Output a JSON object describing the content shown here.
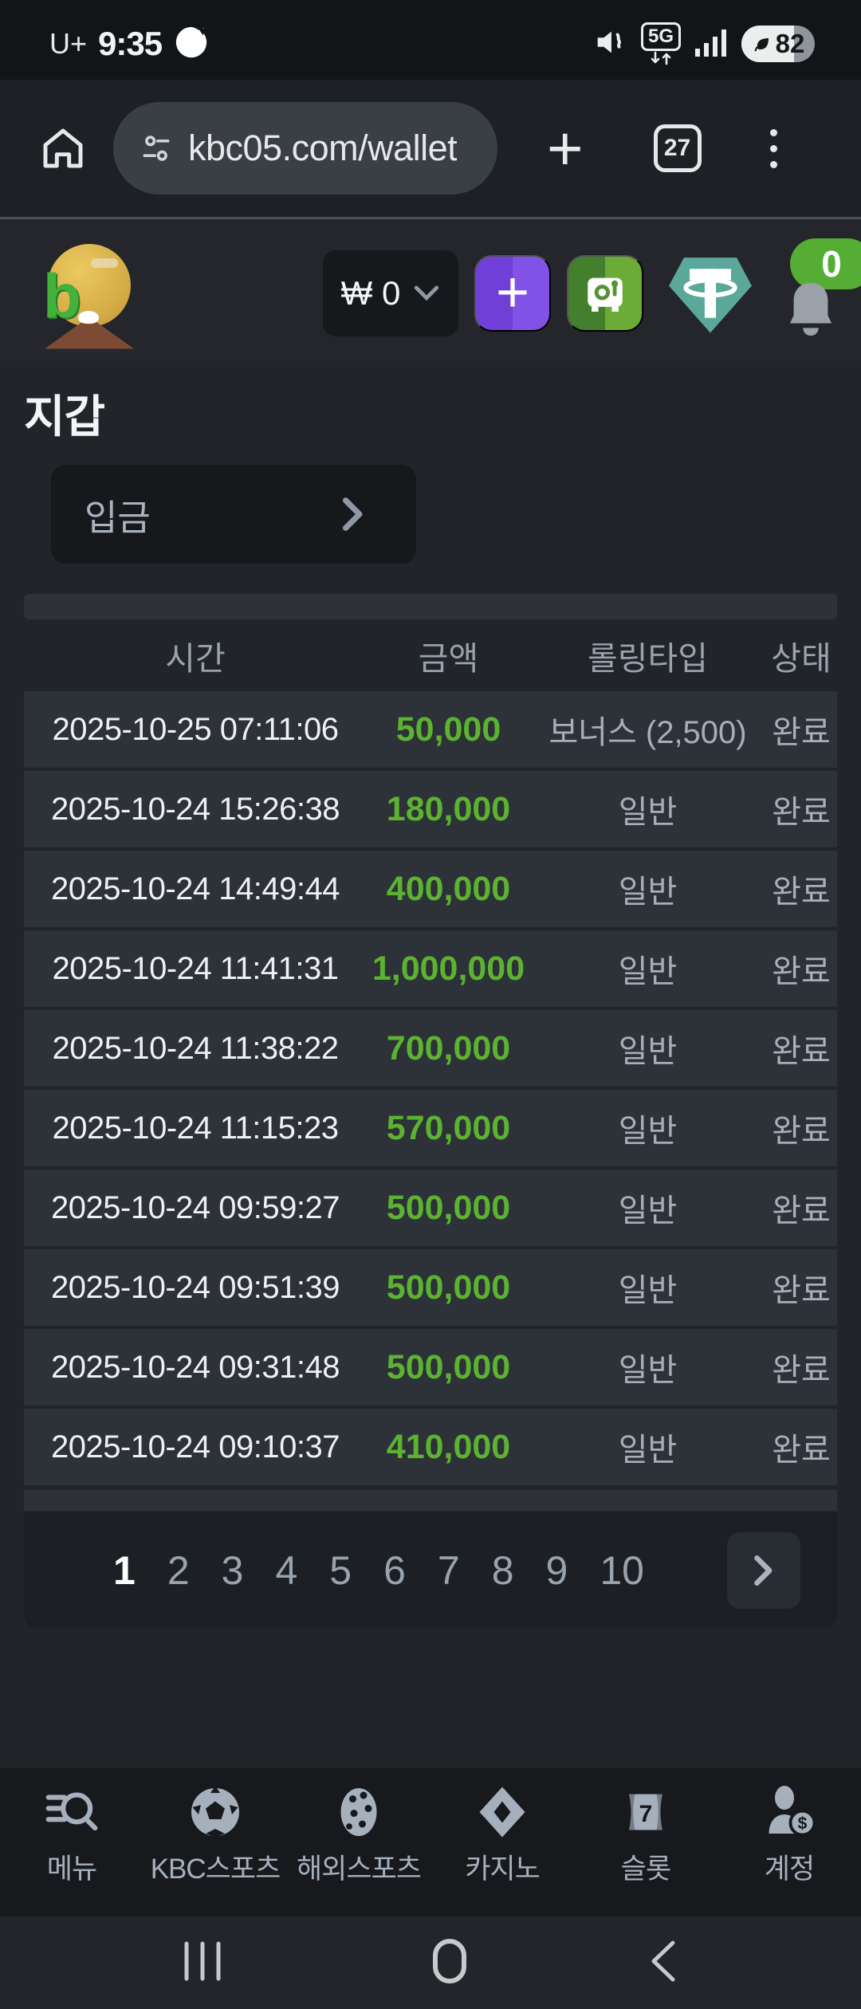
{
  "status_bar": {
    "carrier": "U+",
    "time": "9:35",
    "network": "5G",
    "battery_percent": "82"
  },
  "browser": {
    "url": "kbc05.com/wallet",
    "new_tab_label": "+",
    "tab_count": "27"
  },
  "site_header": {
    "balance": "₩ 0",
    "notification_badge": "0"
  },
  "wallet": {
    "title": "지갑",
    "deposit_label": "입금"
  },
  "table": {
    "headers": [
      "시간",
      "금액",
      "롤링타입",
      "상태"
    ],
    "rows": [
      {
        "time": "2025-10-25 07:11:06",
        "amount": "50,000",
        "rolling_type": "보너스 (2,500)",
        "status": "완료"
      },
      {
        "time": "2025-10-24 15:26:38",
        "amount": "180,000",
        "rolling_type": "일반",
        "status": "완료"
      },
      {
        "time": "2025-10-24 14:49:44",
        "amount": "400,000",
        "rolling_type": "일반",
        "status": "완료"
      },
      {
        "time": "2025-10-24 11:41:31",
        "amount": "1,000,000",
        "rolling_type": "일반",
        "status": "완료"
      },
      {
        "time": "2025-10-24 11:38:22",
        "amount": "700,000",
        "rolling_type": "일반",
        "status": "완료"
      },
      {
        "time": "2025-10-24 11:15:23",
        "amount": "570,000",
        "rolling_type": "일반",
        "status": "완료"
      },
      {
        "time": "2025-10-24 09:59:27",
        "amount": "500,000",
        "rolling_type": "일반",
        "status": "완료"
      },
      {
        "time": "2025-10-24 09:51:39",
        "amount": "500,000",
        "rolling_type": "일반",
        "status": "완료"
      },
      {
        "time": "2025-10-24 09:31:48",
        "amount": "500,000",
        "rolling_type": "일반",
        "status": "완료"
      },
      {
        "time": "2025-10-24 09:10:37",
        "amount": "410,000",
        "rolling_type": "일반",
        "status": "완료"
      }
    ]
  },
  "pagination": {
    "pages": [
      "1",
      "2",
      "3",
      "4",
      "5",
      "6",
      "7",
      "8",
      "9",
      "10"
    ],
    "current": "1"
  },
  "bottom_nav": {
    "items": [
      {
        "label": "메뉴"
      },
      {
        "label": "KBC스포츠"
      },
      {
        "label": "해외스포츠"
      },
      {
        "label": "카지노"
      },
      {
        "label": "슬롯"
      },
      {
        "label": "계정"
      }
    ]
  },
  "icons": {
    "slot_digit": "7",
    "coin_symbol": "$",
    "logo_letter": "b"
  },
  "colors": {
    "amount_green": "#5cb231",
    "badge_green": "#55ad33",
    "accent_purple": "#7a4be0",
    "tether_teal": "#5ba89b"
  }
}
